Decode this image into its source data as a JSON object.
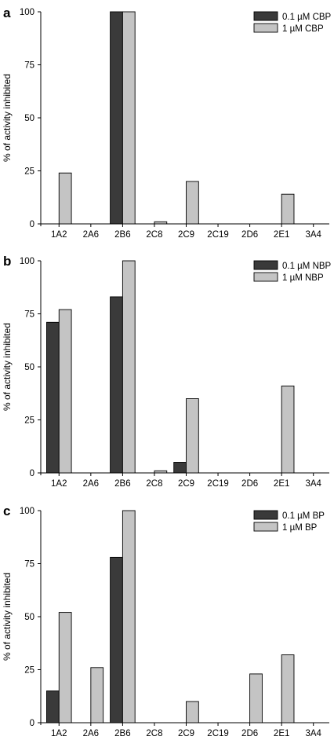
{
  "chart_data": [
    {
      "type": "bar",
      "panel_label": "a",
      "ylabel": "% of activity inhibited",
      "ylim": [
        0,
        100
      ],
      "yticks": [
        "0",
        "25",
        "50",
        "75",
        "100"
      ],
      "categories": [
        "1A2",
        "2A6",
        "2B6",
        "2C8",
        "2C9",
        "2C19",
        "2D6",
        "2E1",
        "3A4"
      ],
      "series": [
        {
          "name": "0.1 µM CBP",
          "color": "#3a3a3a",
          "values": [
            0,
            0,
            100,
            0,
            0,
            0,
            0,
            0,
            0
          ]
        },
        {
          "name": "1 µM CBP",
          "color": "#c4c4c4",
          "values": [
            24,
            0,
            100,
            1,
            20,
            0,
            0,
            14,
            0
          ]
        }
      ],
      "legend_position": "top-right"
    },
    {
      "type": "bar",
      "panel_label": "b",
      "ylabel": "% of activity inhibited",
      "ylim": [
        0,
        100
      ],
      "yticks": [
        "0",
        "25",
        "50",
        "75",
        "100"
      ],
      "categories": [
        "1A2",
        "2A6",
        "2B6",
        "2C8",
        "2C9",
        "2C19",
        "2D6",
        "2E1",
        "3A4"
      ],
      "series": [
        {
          "name": "0.1 µM NBP",
          "color": "#3a3a3a",
          "values": [
            71,
            0,
            83,
            0,
            5,
            0,
            0,
            0,
            0
          ]
        },
        {
          "name": "1 µM NBP",
          "color": "#c4c4c4",
          "values": [
            77,
            0,
            100,
            1,
            35,
            0,
            0,
            41,
            0
          ]
        }
      ],
      "legend_position": "top-right"
    },
    {
      "type": "bar",
      "panel_label": "c",
      "ylabel": "% of activity inhibited",
      "ylim": [
        0,
        100
      ],
      "yticks": [
        "0",
        "25",
        "50",
        "75",
        "100"
      ],
      "categories": [
        "1A2",
        "2A6",
        "2B6",
        "2C8",
        "2C9",
        "2C19",
        "2D6",
        "2E1",
        "3A4"
      ],
      "series": [
        {
          "name": "0.1 µM BP",
          "color": "#3a3a3a",
          "values": [
            15,
            0,
            78,
            0,
            0,
            0,
            0,
            0,
            0
          ]
        },
        {
          "name": "1 µM BP",
          "color": "#c4c4c4",
          "values": [
            52,
            26,
            100,
            0,
            10,
            0,
            23,
            32,
            0
          ]
        }
      ],
      "legend_position": "top-right"
    }
  ]
}
